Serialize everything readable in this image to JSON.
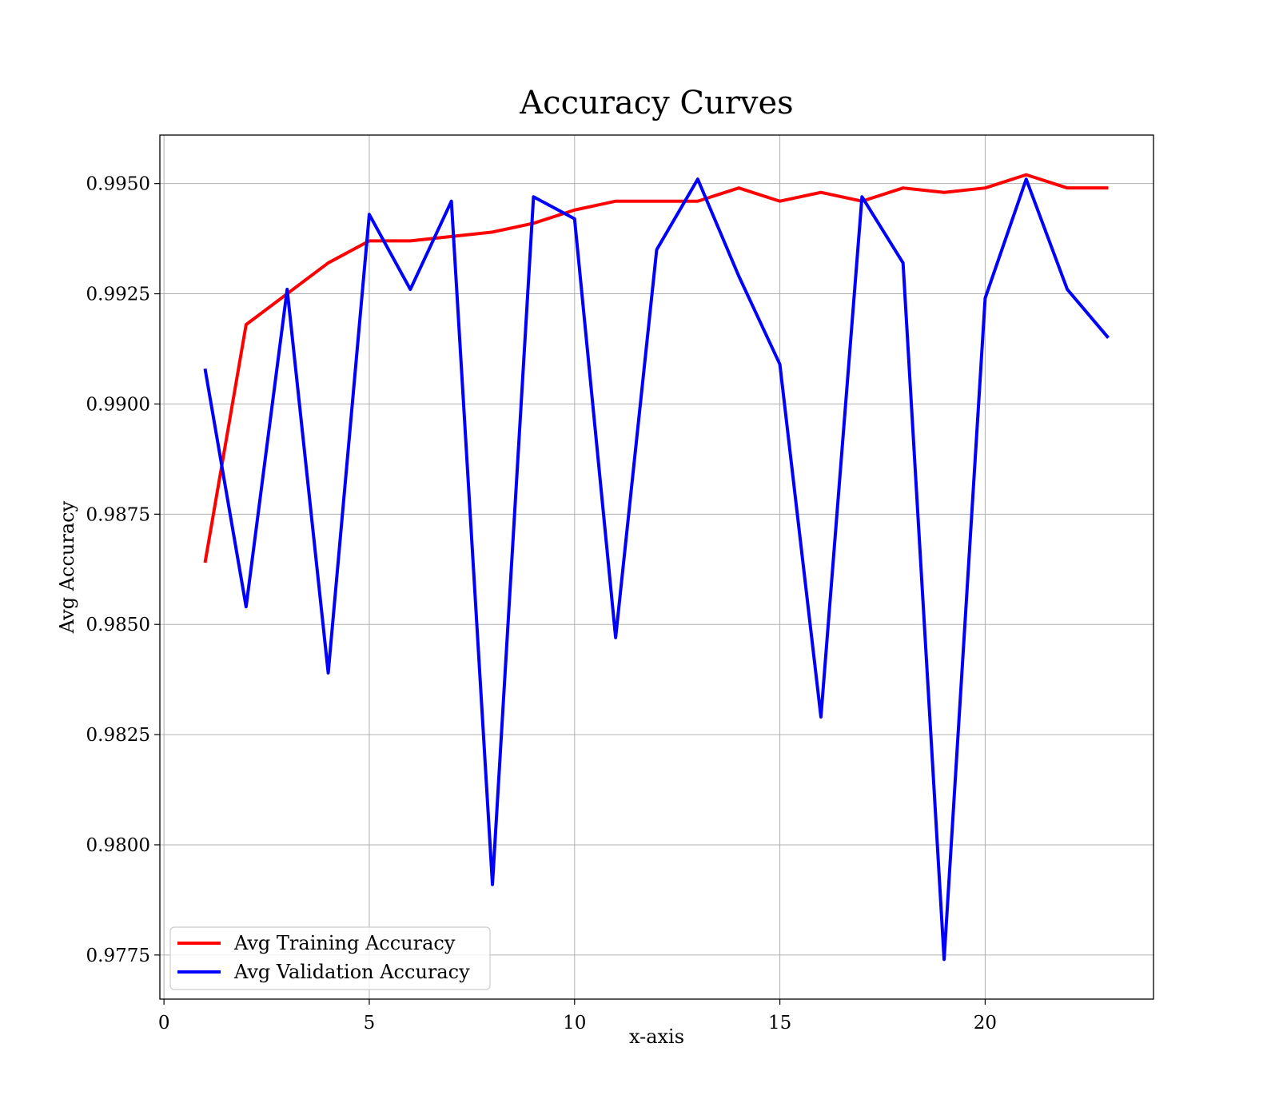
{
  "chart_data": {
    "type": "line",
    "title": "Accuracy Curves",
    "xlabel": "x-axis",
    "ylabel": "Avg Accuracy",
    "xlim": [
      -0.1,
      24.1
    ],
    "ylim": [
      0.9765,
      0.9961
    ],
    "xticks": [
      0,
      5,
      10,
      15,
      20
    ],
    "xtick_labels": [
      "0",
      "5",
      "10",
      "15",
      "20"
    ],
    "yticks": [
      0.9775,
      0.98,
      0.9825,
      0.985,
      0.9875,
      0.99,
      0.9925,
      0.995
    ],
    "ytick_labels": [
      "0.9775",
      "0.9800",
      "0.9825",
      "0.9850",
      "0.9875",
      "0.9900",
      "0.9925",
      "0.9950"
    ],
    "grid": true,
    "legend_position": "lower-left",
    "x": [
      1,
      2,
      3,
      4,
      5,
      6,
      7,
      8,
      9,
      10,
      11,
      12,
      13,
      14,
      15,
      16,
      17,
      18,
      19,
      20,
      21,
      22,
      23
    ],
    "series": [
      {
        "name": "Avg Training Accuracy",
        "color": "#ff0000",
        "values": [
          0.9864,
          0.9918,
          0.9925,
          0.9932,
          0.9937,
          0.9937,
          0.9938,
          0.9939,
          0.9941,
          0.9944,
          0.9946,
          0.9946,
          0.9946,
          0.9949,
          0.9946,
          0.9948,
          0.9946,
          0.9949,
          0.9948,
          0.9949,
          0.9952,
          0.9949,
          0.9949
        ]
      },
      {
        "name": "Avg Validation Accuracy",
        "color": "#0000ff",
        "values": [
          0.9908,
          0.9854,
          0.9926,
          0.9839,
          0.9943,
          0.9926,
          0.9946,
          0.9791,
          0.9947,
          0.9942,
          0.9847,
          0.9935,
          0.9951,
          0.9929,
          0.9909,
          0.9829,
          0.9947,
          0.9932,
          0.9774,
          0.9924,
          0.9951,
          0.9926,
          0.9915
        ]
      }
    ]
  }
}
